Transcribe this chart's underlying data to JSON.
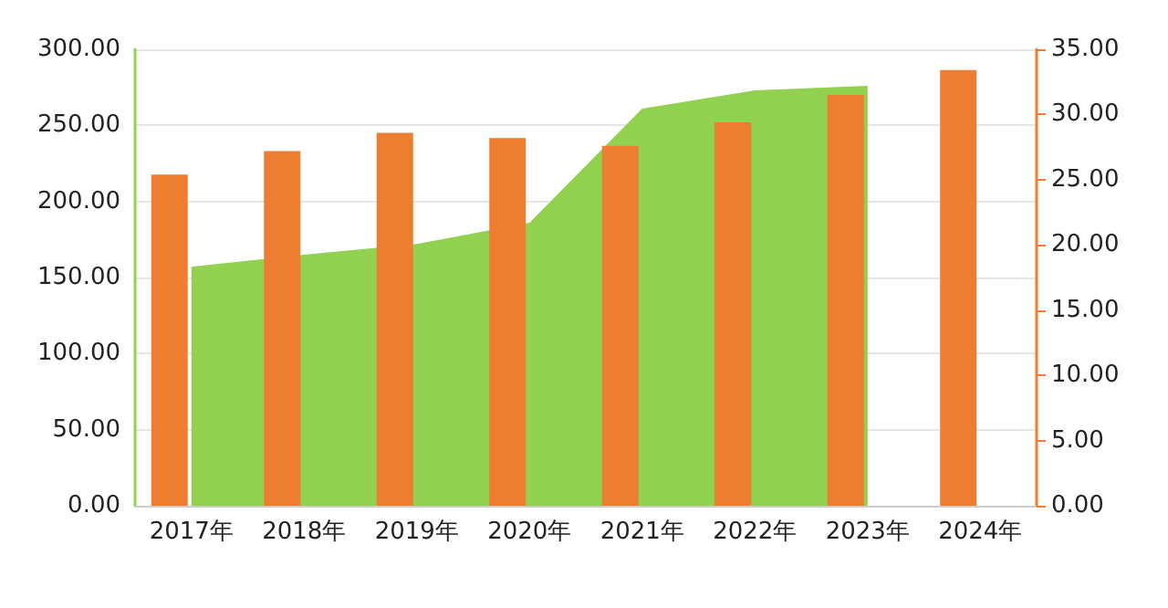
{
  "chart_data": {
    "type": "bar",
    "categories": [
      "2017年",
      "2018年",
      "2019年",
      "2020年",
      "2021年",
      "2022年",
      "2023年",
      "2024年"
    ],
    "series": [
      {
        "type": "area",
        "color": "#92d050",
        "values": [
          157,
          165,
          172,
          186,
          261,
          273,
          276,
          null
        ]
      },
      {
        "axis": "y2",
        "color": "#ed7d31",
        "values": [
          25.4,
          27.2,
          28.6,
          28.2,
          27.6,
          29.4,
          31.5,
          33.4
        ]
      }
    ],
    "ylim": [
      0,
      300
    ],
    "yticks": [
      {
        "value": 0,
        "label": "0.00"
      },
      {
        "value": 50,
        "label": "50.00"
      },
      {
        "value": 100,
        "label": "100.00"
      },
      {
        "value": 150,
        "label": "150.00"
      },
      {
        "value": 200,
        "label": "200.00"
      },
      {
        "value": 250,
        "label": "250.00"
      },
      {
        "value": 300,
        "label": "300.00"
      }
    ],
    "y2lim": [
      0,
      35
    ],
    "y2ticks": [
      {
        "value": 0,
        "label": "0.00"
      },
      {
        "value": 5,
        "label": "5.00"
      },
      {
        "value": 10,
        "label": "10.00"
      },
      {
        "value": 15,
        "label": "15.00"
      },
      {
        "value": 20,
        "label": "20.00"
      },
      {
        "value": 25,
        "label": "25.00"
      },
      {
        "value": 30,
        "label": "30.00"
      },
      {
        "value": 35,
        "label": "35.00"
      }
    ],
    "grid": "y"
  }
}
